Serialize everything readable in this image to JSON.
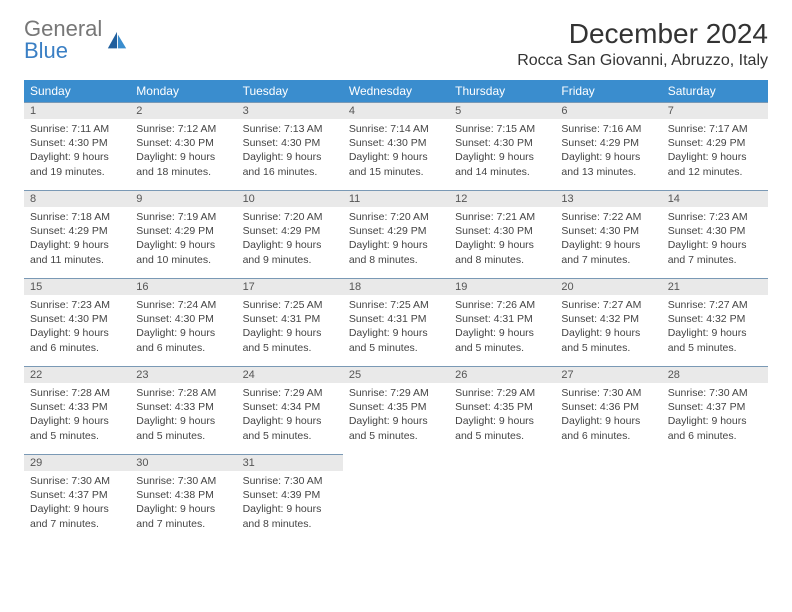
{
  "brand": {
    "part1": "General",
    "part2": "Blue"
  },
  "title": "December 2024",
  "location": "Rocca San Giovanni, Abruzzo, Italy",
  "colors": {
    "header_bg": "#3a8dce",
    "header_text": "#ffffff",
    "daynum_bg": "#e9e9e9",
    "daynum_border": "#7a99b5",
    "text": "#444444",
    "logo_gray": "#777777",
    "logo_blue": "#3a7fc4"
  },
  "weekdays": [
    "Sunday",
    "Monday",
    "Tuesday",
    "Wednesday",
    "Thursday",
    "Friday",
    "Saturday"
  ],
  "days": [
    {
      "n": "1",
      "sunrise": "7:11 AM",
      "sunset": "4:30 PM",
      "daylight": "9 hours and 19 minutes."
    },
    {
      "n": "2",
      "sunrise": "7:12 AM",
      "sunset": "4:30 PM",
      "daylight": "9 hours and 18 minutes."
    },
    {
      "n": "3",
      "sunrise": "7:13 AM",
      "sunset": "4:30 PM",
      "daylight": "9 hours and 16 minutes."
    },
    {
      "n": "4",
      "sunrise": "7:14 AM",
      "sunset": "4:30 PM",
      "daylight": "9 hours and 15 minutes."
    },
    {
      "n": "5",
      "sunrise": "7:15 AM",
      "sunset": "4:30 PM",
      "daylight": "9 hours and 14 minutes."
    },
    {
      "n": "6",
      "sunrise": "7:16 AM",
      "sunset": "4:29 PM",
      "daylight": "9 hours and 13 minutes."
    },
    {
      "n": "7",
      "sunrise": "7:17 AM",
      "sunset": "4:29 PM",
      "daylight": "9 hours and 12 minutes."
    },
    {
      "n": "8",
      "sunrise": "7:18 AM",
      "sunset": "4:29 PM",
      "daylight": "9 hours and 11 minutes."
    },
    {
      "n": "9",
      "sunrise": "7:19 AM",
      "sunset": "4:29 PM",
      "daylight": "9 hours and 10 minutes."
    },
    {
      "n": "10",
      "sunrise": "7:20 AM",
      "sunset": "4:29 PM",
      "daylight": "9 hours and 9 minutes."
    },
    {
      "n": "11",
      "sunrise": "7:20 AM",
      "sunset": "4:29 PM",
      "daylight": "9 hours and 8 minutes."
    },
    {
      "n": "12",
      "sunrise": "7:21 AM",
      "sunset": "4:30 PM",
      "daylight": "9 hours and 8 minutes."
    },
    {
      "n": "13",
      "sunrise": "7:22 AM",
      "sunset": "4:30 PM",
      "daylight": "9 hours and 7 minutes."
    },
    {
      "n": "14",
      "sunrise": "7:23 AM",
      "sunset": "4:30 PM",
      "daylight": "9 hours and 7 minutes."
    },
    {
      "n": "15",
      "sunrise": "7:23 AM",
      "sunset": "4:30 PM",
      "daylight": "9 hours and 6 minutes."
    },
    {
      "n": "16",
      "sunrise": "7:24 AM",
      "sunset": "4:30 PM",
      "daylight": "9 hours and 6 minutes."
    },
    {
      "n": "17",
      "sunrise": "7:25 AM",
      "sunset": "4:31 PM",
      "daylight": "9 hours and 5 minutes."
    },
    {
      "n": "18",
      "sunrise": "7:25 AM",
      "sunset": "4:31 PM",
      "daylight": "9 hours and 5 minutes."
    },
    {
      "n": "19",
      "sunrise": "7:26 AM",
      "sunset": "4:31 PM",
      "daylight": "9 hours and 5 minutes."
    },
    {
      "n": "20",
      "sunrise": "7:27 AM",
      "sunset": "4:32 PM",
      "daylight": "9 hours and 5 minutes."
    },
    {
      "n": "21",
      "sunrise": "7:27 AM",
      "sunset": "4:32 PM",
      "daylight": "9 hours and 5 minutes."
    },
    {
      "n": "22",
      "sunrise": "7:28 AM",
      "sunset": "4:33 PM",
      "daylight": "9 hours and 5 minutes."
    },
    {
      "n": "23",
      "sunrise": "7:28 AM",
      "sunset": "4:33 PM",
      "daylight": "9 hours and 5 minutes."
    },
    {
      "n": "24",
      "sunrise": "7:29 AM",
      "sunset": "4:34 PM",
      "daylight": "9 hours and 5 minutes."
    },
    {
      "n": "25",
      "sunrise": "7:29 AM",
      "sunset": "4:35 PM",
      "daylight": "9 hours and 5 minutes."
    },
    {
      "n": "26",
      "sunrise": "7:29 AM",
      "sunset": "4:35 PM",
      "daylight": "9 hours and 5 minutes."
    },
    {
      "n": "27",
      "sunrise": "7:30 AM",
      "sunset": "4:36 PM",
      "daylight": "9 hours and 6 minutes."
    },
    {
      "n": "28",
      "sunrise": "7:30 AM",
      "sunset": "4:37 PM",
      "daylight": "9 hours and 6 minutes."
    },
    {
      "n": "29",
      "sunrise": "7:30 AM",
      "sunset": "4:37 PM",
      "daylight": "9 hours and 7 minutes."
    },
    {
      "n": "30",
      "sunrise": "7:30 AM",
      "sunset": "4:38 PM",
      "daylight": "9 hours and 7 minutes."
    },
    {
      "n": "31",
      "sunrise": "7:30 AM",
      "sunset": "4:39 PM",
      "daylight": "9 hours and 8 minutes."
    }
  ],
  "labels": {
    "sunrise": "Sunrise: ",
    "sunset": "Sunset: ",
    "daylight": "Daylight: "
  }
}
